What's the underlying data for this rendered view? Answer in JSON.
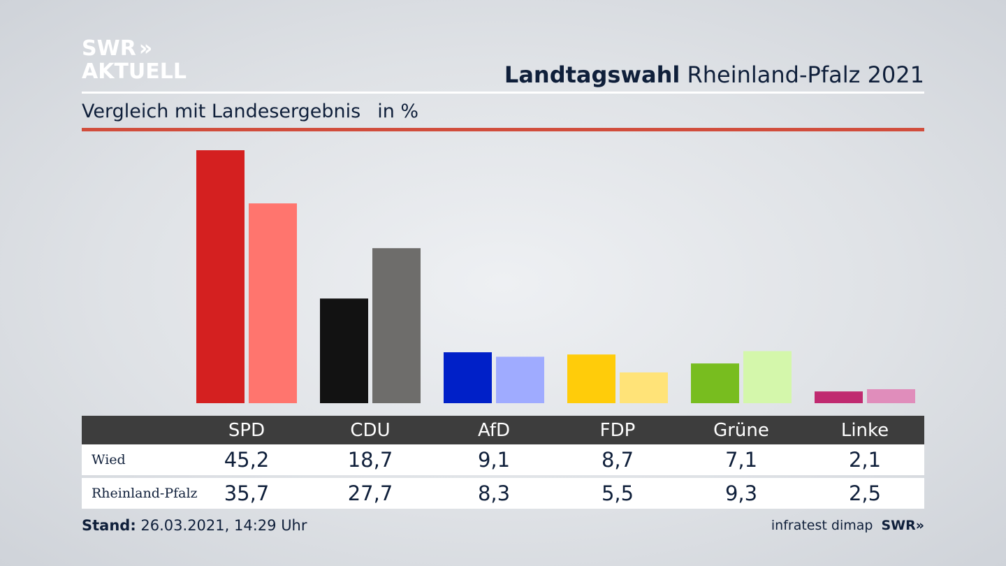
{
  "brand": {
    "line1": "SWR",
    "line2": "AKTUELL",
    "chevrons": "»"
  },
  "header": {
    "title_bold": "Landtagswahl",
    "title_rest": "Rheinland-Pfalz 2021"
  },
  "subtitle": {
    "text": "Vergleich mit Landesergebnis",
    "unit": "in %"
  },
  "colors": {
    "accent_rule": "#d14d3c",
    "SPD": [
      "#d42020",
      "#ff756e"
    ],
    "CDU": [
      "#121212",
      "#6e6d6b"
    ],
    "AfD": [
      "#0020c8",
      "#9fabff"
    ],
    "FDP": [
      "#ffcc0a",
      "#ffe378"
    ],
    "Grüne": [
      "#78bd1f",
      "#d4f7ab"
    ],
    "Linke": [
      "#c02a70",
      "#e08dbb"
    ]
  },
  "chart_data": {
    "type": "bar",
    "categories": [
      "SPD",
      "CDU",
      "AfD",
      "FDP",
      "Grüne",
      "Linke"
    ],
    "series": [
      {
        "name": "Wied",
        "values": [
          45.2,
          18.7,
          9.1,
          8.7,
          7.1,
          2.1
        ],
        "labels": [
          "45,2",
          "18,7",
          "9,1",
          "8,7",
          "7,1",
          "2,1"
        ]
      },
      {
        "name": "Rheinland-Pfalz",
        "values": [
          35.7,
          27.7,
          8.3,
          5.5,
          9.3,
          2.5
        ],
        "labels": [
          "35,7",
          "27,7",
          "8,3",
          "5,5",
          "9,3",
          "2,5"
        ]
      }
    ],
    "ylim": [
      0,
      45.2
    ],
    "grid": false,
    "legend": "table-below"
  },
  "footer": {
    "stand_label": "Stand:",
    "stand_value": "26.03.2021, 14:29 Uhr"
  },
  "source": {
    "text": "infratest dimap",
    "brand": "SWR",
    "chevrons": "»"
  }
}
